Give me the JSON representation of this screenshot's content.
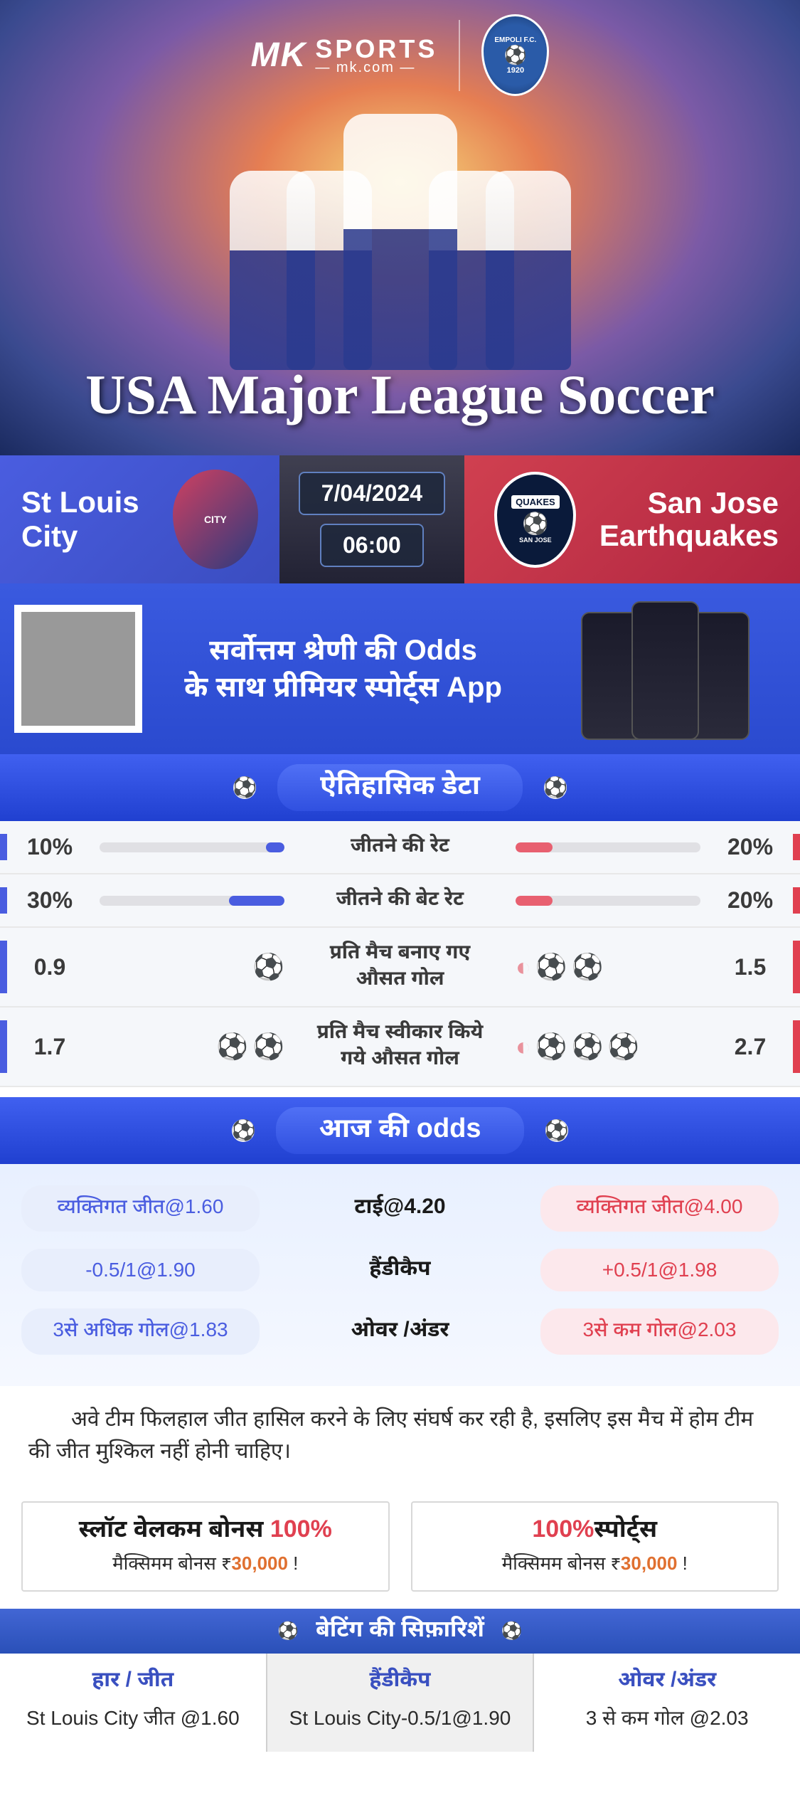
{
  "brand": {
    "mk": "MK",
    "sports_label": "SPORTS",
    "site_label": "— mk.com —",
    "partner_badge_top": "EMPOLI F.C.",
    "partner_badge_year": "1920"
  },
  "hero": {
    "league_title": "USA Major League Soccer",
    "bg_gradient": [
      "#f5d87a",
      "#e67e52",
      "#7b5aa6",
      "#3a4a8f",
      "#1a2a5f"
    ]
  },
  "match": {
    "home_team": "St Louis City",
    "away_team": "San Jose\nEarthquakes",
    "date": "7/04/2024",
    "time": "06:00",
    "home_logo_text": "CITY",
    "away_logo_top": "QUAKES",
    "away_logo_sub": "SAN JOSE",
    "home_color": "#4a5de0",
    "away_color": "#d04050"
  },
  "promo": {
    "text_line1": "सर्वोत्तम श्रेणी की Odds",
    "text_line2": "के साथ प्रीमियर स्पोर्ट्स App"
  },
  "historical": {
    "header": "ऐतिहासिक डेटा",
    "rows": [
      {
        "label": "जीतने की रेट",
        "home_val": "10%",
        "away_val": "20%",
        "home_pct": 10,
        "away_pct": 20,
        "type": "bar"
      },
      {
        "label": "जीतने की बेट रेट",
        "home_val": "30%",
        "away_val": "20%",
        "home_pct": 30,
        "away_pct": 20,
        "type": "bar"
      },
      {
        "label": "प्रति मैच बनाए गए औसत गोल",
        "home_val": "0.9",
        "away_val": "1.5",
        "home_icons": 1,
        "away_icons": 2,
        "away_half": true,
        "type": "balls"
      },
      {
        "label": "प्रति मैच स्वीकार किये गये औसत गोल",
        "home_val": "1.7",
        "away_val": "2.7",
        "home_icons": 2,
        "away_icons": 3,
        "away_half": true,
        "type": "balls"
      }
    ]
  },
  "odds": {
    "header": "आज की odds",
    "rows": [
      {
        "home": "व्यक्तिगत जीत@1.60",
        "center": "टाई@4.20",
        "away": "व्यक्तिगत जीत@4.00"
      },
      {
        "home": "-0.5/1@1.90",
        "center": "हैंडीकैप",
        "away": "+0.5/1@1.98"
      },
      {
        "home": "3से अधिक गोल@1.83",
        "center": "ओवर /अंडर",
        "away": "3से कम गोल@2.03"
      }
    ]
  },
  "analysis": {
    "text": "अवे टीम फिलहाल जीत हासिल करने के लिए संघर्ष कर रही है, इसलिए इस मैच में होम टीम की जीत मुश्किल नहीं होनी चाहिए।"
  },
  "bonuses": [
    {
      "title_pre": "स्लॉट वेलकम बोनस ",
      "title_pct": "100%",
      "title_post": "",
      "sub_pre": "मैक्सिमम बोनस ₹",
      "sub_amt": "30,000",
      "sub_post": "   !"
    },
    {
      "title_pre": "",
      "title_pct": "100%",
      "title_post": "स्पोर्ट्स",
      "sub_pre": "मैक्सिमम बोनस  ₹",
      "sub_amt": "30,000",
      "sub_post": " !"
    }
  ],
  "recommendations": {
    "header": "बेटिंग की सिफ़ारिशें",
    "cols": [
      {
        "heading": "हार / जीत",
        "value": "St Louis City जीत @1.60"
      },
      {
        "heading": "हैंडीकैप",
        "value": "St Louis City-0.5/1@1.90"
      },
      {
        "heading": "ओवर /अंडर",
        "value": "3 से कम गोल @2.03"
      }
    ]
  },
  "colors": {
    "home": "#4a5de0",
    "away": "#e04050",
    "home_soft": "#e8eefc",
    "away_soft": "#fce8ec",
    "header_grad_top": "#4060f0",
    "header_grad_bot": "#2040d0"
  }
}
